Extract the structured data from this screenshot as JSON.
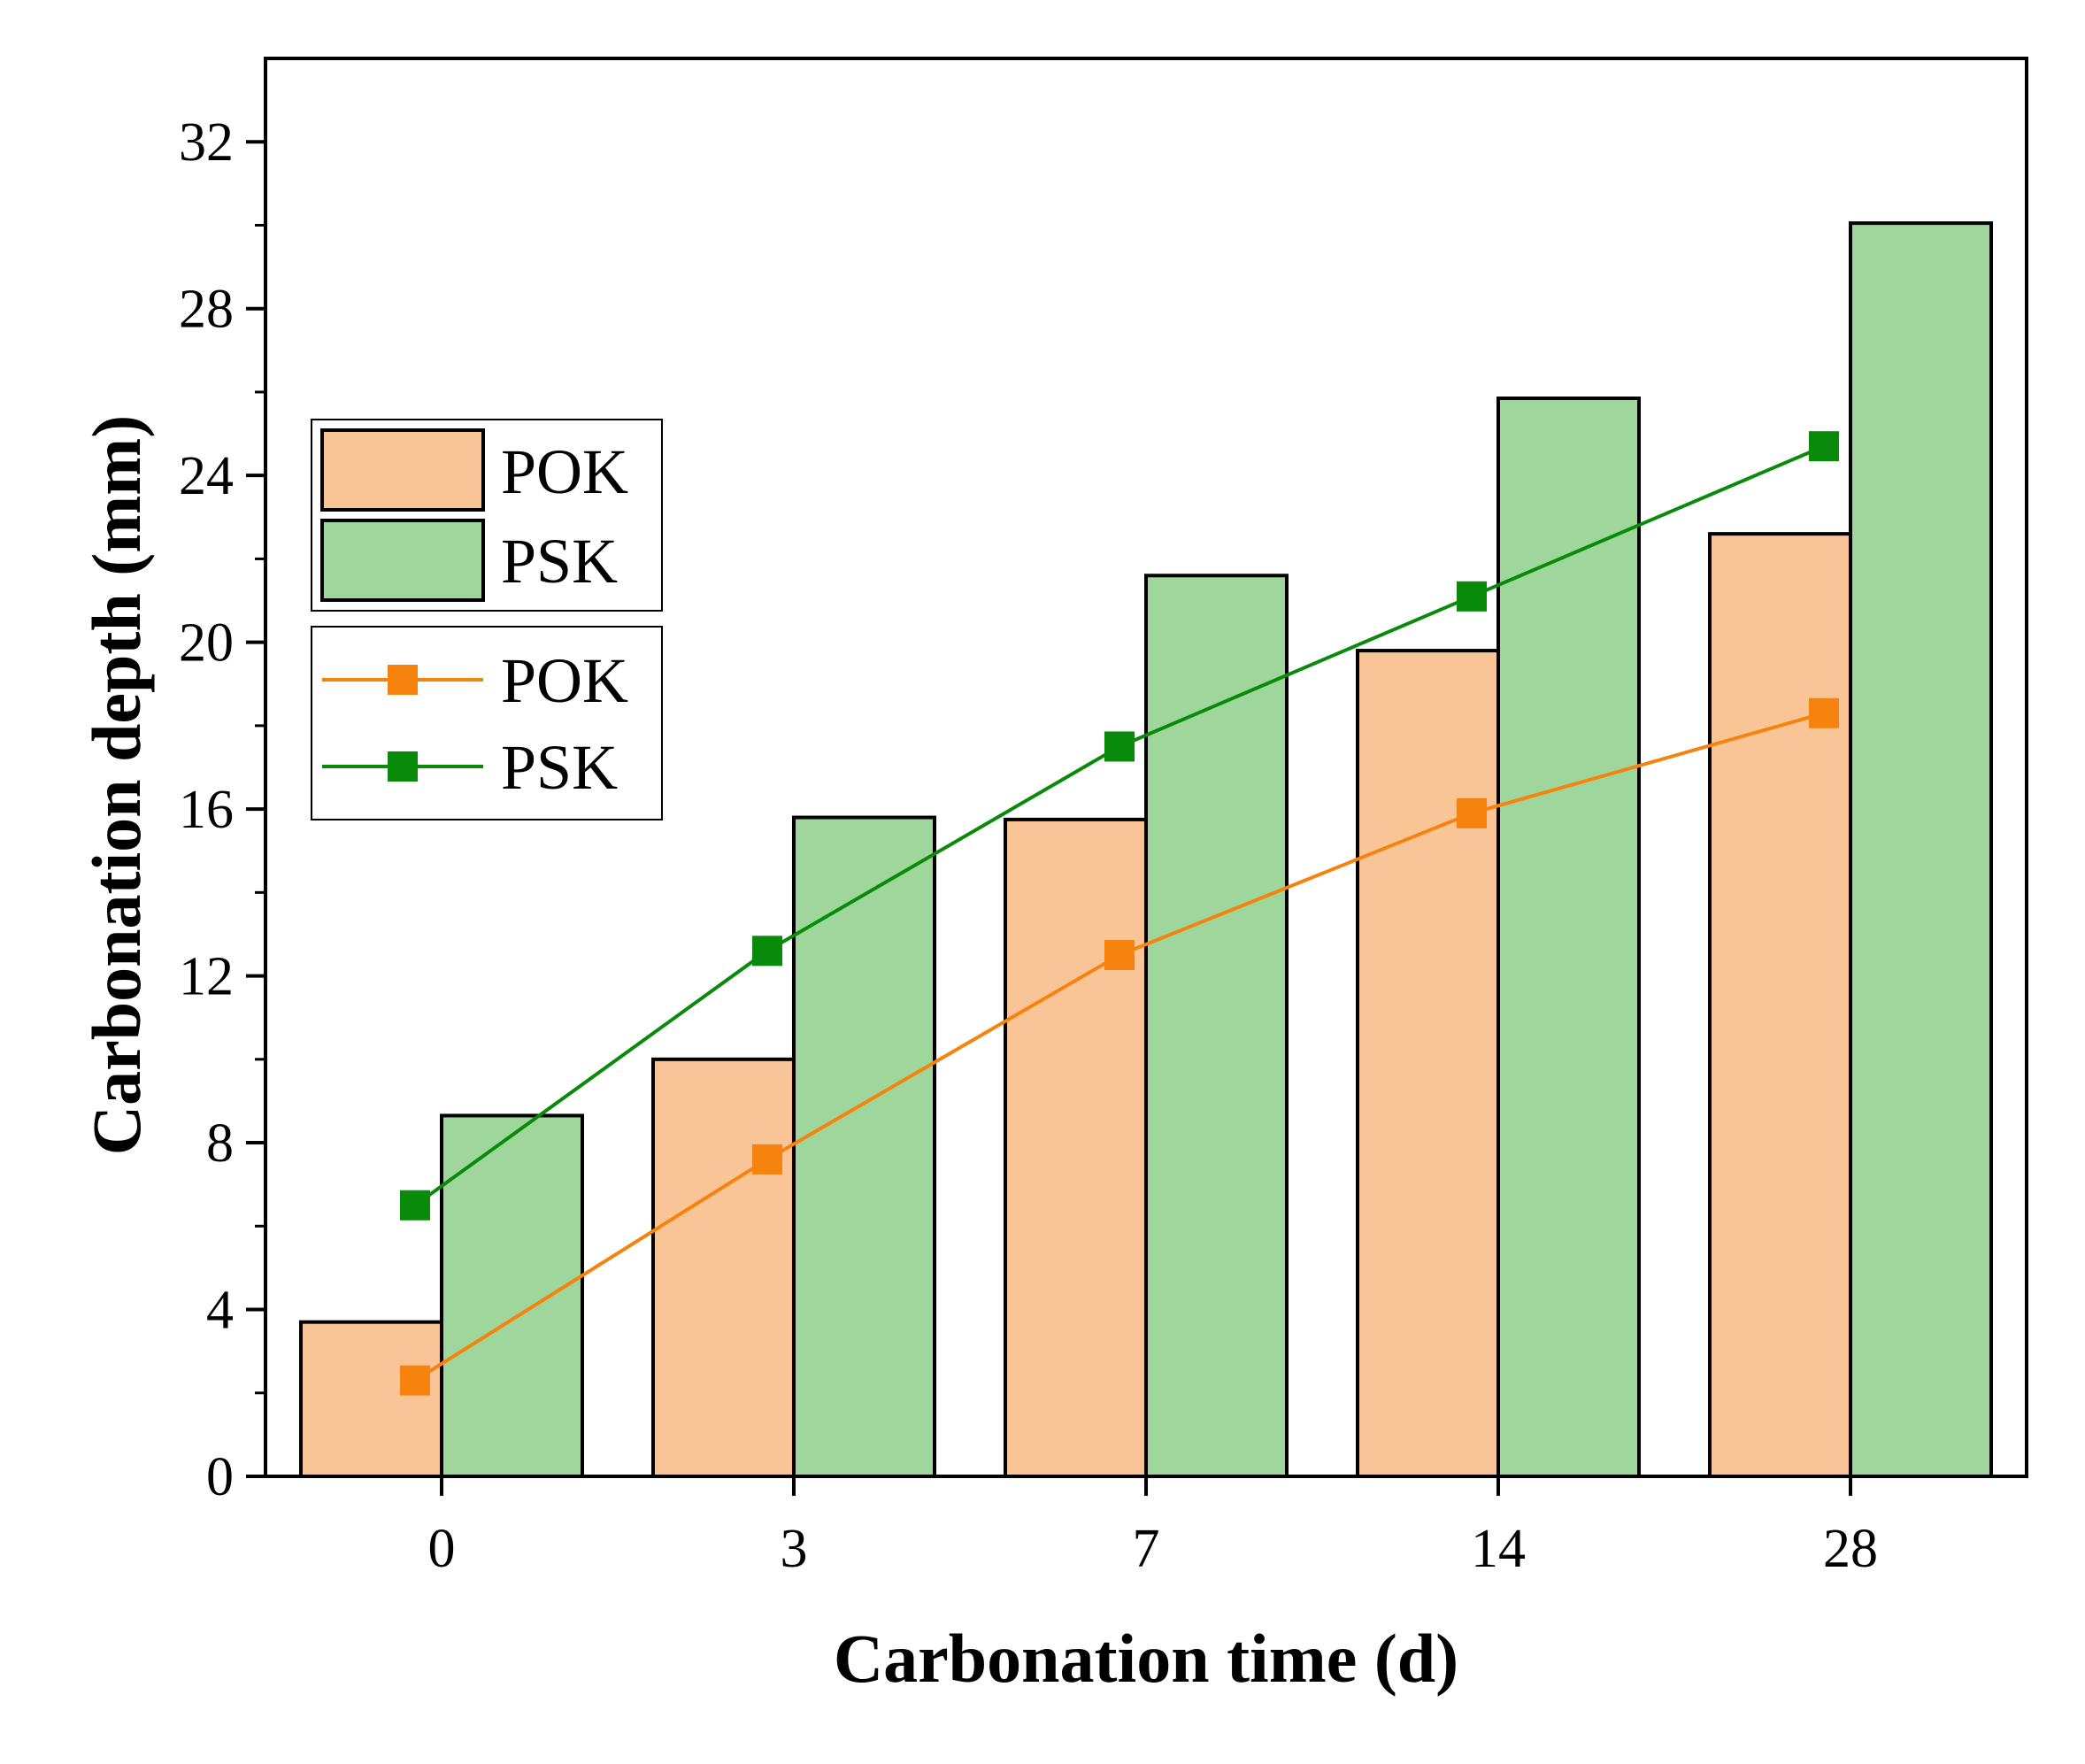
{
  "chart_data": {
    "type": "bar",
    "title": "",
    "xlabel": "Carbonation time (d)",
    "ylabel": "Carbonation depth (mm)",
    "categories": [
      "0",
      "3",
      "7",
      "14",
      "28"
    ],
    "ylim": [
      0,
      34
    ],
    "yticks": [
      0,
      4,
      8,
      12,
      16,
      20,
      24,
      28,
      32
    ],
    "ytick_labels": [
      "0",
      "4",
      "8",
      "12",
      "16",
      "20",
      "24",
      "28",
      "32"
    ],
    "bar_series": [
      {
        "name": "POK",
        "values": [
          3.7,
          10.0,
          15.75,
          19.8,
          22.6
        ],
        "color": "#f9c596"
      },
      {
        "name": "PSK",
        "values": [
          8.65,
          15.8,
          21.6,
          25.85,
          30.05
        ],
        "color": "#9ed69b"
      }
    ],
    "line_series": [
      {
        "name": "POK",
        "values": [
          2.3,
          7.6,
          12.5,
          15.9,
          18.3
        ],
        "color": "#f7830f"
      },
      {
        "name": "PSK",
        "values": [
          6.5,
          12.6,
          17.5,
          21.1,
          24.7
        ],
        "color": "#0a8a0a"
      }
    ],
    "legend_position": "top-left",
    "grid": false
  }
}
